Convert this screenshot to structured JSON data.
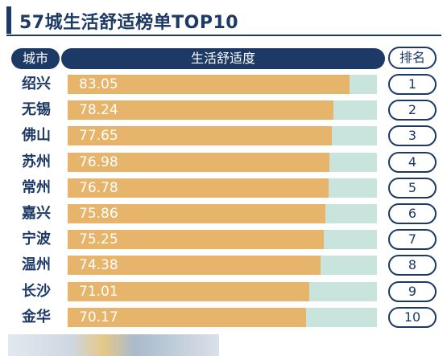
{
  "title": "57城生活舒适榜单TOP10",
  "header": {
    "city": "城市",
    "score": "生活舒适度",
    "rank": "排名"
  },
  "colors": {
    "navy": "#1d3a66",
    "bar": "#e7b46b",
    "track": "#c9e4dc"
  },
  "chart_data": {
    "type": "bar",
    "title": "57城生活舒适榜单TOP10",
    "categories": [
      "绍兴",
      "无锡",
      "佛山",
      "苏州",
      "常州",
      "嘉兴",
      "宁波",
      "温州",
      "长沙",
      "金华"
    ],
    "values": [
      83.05,
      78.24,
      77.65,
      76.98,
      76.78,
      75.86,
      75.25,
      74.38,
      71.01,
      70.17
    ],
    "ranks": [
      "1",
      "2",
      "3",
      "4",
      "5",
      "6",
      "7",
      "8",
      "9",
      "10"
    ],
    "value_labels": [
      "83.05",
      "78.24",
      "77.65",
      "76.98",
      "76.78",
      "75.86",
      "75.25",
      "74.38",
      "71.01",
      "70.17"
    ],
    "xlim": [
      0,
      91
    ],
    "ylabel": "城市",
    "xlabel": "生活舒适度"
  }
}
